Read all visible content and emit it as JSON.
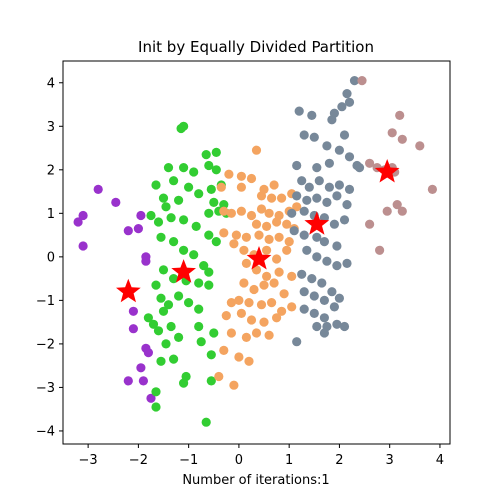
{
  "chart_data": {
    "type": "scatter",
    "title": "Init by Equally Divided Partition",
    "xlabel": "Number of iterations:1",
    "ylabel": "",
    "xlim": [
      -3.5,
      4.2
    ],
    "ylim": [
      -4.3,
      4.5
    ],
    "xticks": [
      -3,
      -2,
      -1,
      0,
      1,
      2,
      3,
      4
    ],
    "yticks": [
      -4,
      -3,
      -2,
      -1,
      0,
      1,
      2,
      3,
      4
    ],
    "grid": false,
    "series": [
      {
        "color": "#9932cc",
        "points": [
          [
            -3.2,
            0.8
          ],
          [
            -3.1,
            0.95
          ],
          [
            -3.1,
            0.25
          ],
          [
            -2.8,
            1.55
          ],
          [
            -2.45,
            1.25
          ],
          [
            -2.2,
            0.6
          ],
          [
            -2.0,
            0.65
          ],
          [
            -1.95,
            0.95
          ],
          [
            -1.85,
            -0.1
          ],
          [
            -1.85,
            0.0
          ],
          [
            -2.1,
            -1.25
          ],
          [
            -2.1,
            -1.65
          ],
          [
            -1.85,
            -2.1
          ],
          [
            -1.8,
            -2.2
          ],
          [
            -1.9,
            -2.85
          ],
          [
            -2.2,
            -2.85
          ],
          [
            -1.95,
            -2.55
          ],
          [
            -1.75,
            -3.25
          ]
        ]
      },
      {
        "color": "#32cd32",
        "points": [
          [
            -1.15,
            2.95
          ],
          [
            -1.1,
            3.0
          ],
          [
            -0.65,
            2.35
          ],
          [
            -0.45,
            2.4
          ],
          [
            -1.4,
            2.05
          ],
          [
            -1.3,
            1.75
          ],
          [
            -1.1,
            2.05
          ],
          [
            -0.9,
            1.95
          ],
          [
            -0.6,
            2.1
          ],
          [
            -0.45,
            2.0
          ],
          [
            -1.65,
            1.65
          ],
          [
            -1.5,
            1.35
          ],
          [
            -1.45,
            1.15
          ],
          [
            -1.2,
            1.3
          ],
          [
            -1.0,
            1.6
          ],
          [
            -0.8,
            1.45
          ],
          [
            -0.55,
            1.55
          ],
          [
            -0.35,
            1.65
          ],
          [
            -0.5,
            1.25
          ],
          [
            -0.3,
            1.2
          ],
          [
            -0.6,
            1.0
          ],
          [
            -0.4,
            1.05
          ],
          [
            -0.25,
            1.0
          ],
          [
            -1.75,
            0.95
          ],
          [
            -1.6,
            0.8
          ],
          [
            -1.35,
            0.9
          ],
          [
            -1.1,
            0.85
          ],
          [
            -0.85,
            0.7
          ],
          [
            -0.6,
            0.5
          ],
          [
            -0.45,
            0.35
          ],
          [
            -1.55,
            0.45
          ],
          [
            -1.3,
            0.35
          ],
          [
            -1.1,
            0.15
          ],
          [
            -0.9,
            0.05
          ],
          [
            -0.7,
            -0.2
          ],
          [
            -0.6,
            -0.35
          ],
          [
            -1.5,
            -0.3
          ],
          [
            -1.3,
            -0.5
          ],
          [
            -1.05,
            -0.55
          ],
          [
            -0.8,
            -0.6
          ],
          [
            -0.6,
            -0.65
          ],
          [
            -1.65,
            -0.65
          ],
          [
            -1.55,
            -0.95
          ],
          [
            -1.4,
            -1.1
          ],
          [
            -1.2,
            -0.9
          ],
          [
            -1.0,
            -1.05
          ],
          [
            -0.8,
            -1.2
          ],
          [
            -1.8,
            -1.4
          ],
          [
            -1.7,
            -1.55
          ],
          [
            -1.5,
            -1.25
          ],
          [
            -1.35,
            -1.6
          ],
          [
            -1.2,
            -1.85
          ],
          [
            -0.8,
            -1.6
          ],
          [
            -0.75,
            -1.95
          ],
          [
            -1.6,
            -1.7
          ],
          [
            -1.45,
            -2.0
          ],
          [
            -1.3,
            -2.35
          ],
          [
            -0.5,
            -1.75
          ],
          [
            -0.55,
            -2.25
          ],
          [
            -1.55,
            -2.4
          ],
          [
            -1.1,
            -2.9
          ],
          [
            -1.05,
            -2.75
          ],
          [
            -0.55,
            -2.85
          ],
          [
            -1.65,
            -3.1
          ],
          [
            -1.65,
            -3.45
          ],
          [
            -0.65,
            -3.8
          ]
        ]
      },
      {
        "color": "#f4a460",
        "points": [
          [
            0.35,
            2.45
          ],
          [
            -0.35,
            1.6
          ],
          [
            -0.2,
            1.9
          ],
          [
            0.05,
            1.85
          ],
          [
            0.25,
            1.8
          ],
          [
            0.05,
            1.6
          ],
          [
            0.5,
            1.55
          ],
          [
            0.7,
            1.65
          ],
          [
            0.45,
            1.4
          ],
          [
            0.65,
            1.35
          ],
          [
            0.85,
            1.35
          ],
          [
            1.05,
            1.45
          ],
          [
            1.15,
            1.15
          ],
          [
            -0.3,
            1.05
          ],
          [
            -0.15,
            1.0
          ],
          [
            0.05,
            1.05
          ],
          [
            0.25,
            0.95
          ],
          [
            0.45,
            1.1
          ],
          [
            0.6,
            1.0
          ],
          [
            0.8,
            0.95
          ],
          [
            1.0,
            1.05
          ],
          [
            0.35,
            0.75
          ],
          [
            0.55,
            0.7
          ],
          [
            0.75,
            0.8
          ],
          [
            0.95,
            0.75
          ],
          [
            1.1,
            0.65
          ],
          [
            -0.3,
            0.55
          ],
          [
            -0.05,
            0.5
          ],
          [
            0.15,
            0.45
          ],
          [
            0.4,
            0.5
          ],
          [
            0.6,
            0.4
          ],
          [
            0.8,
            0.45
          ],
          [
            1.0,
            0.35
          ],
          [
            -0.1,
            0.3
          ],
          [
            0.1,
            0.15
          ],
          [
            0.3,
            0.05
          ],
          [
            0.55,
            0.15
          ],
          [
            0.75,
            -0.05
          ],
          [
            0.95,
            0.15
          ],
          [
            0.15,
            -0.15
          ],
          [
            0.35,
            -0.3
          ],
          [
            0.55,
            -0.45
          ],
          [
            0.8,
            -0.35
          ],
          [
            1.05,
            -0.45
          ],
          [
            0.1,
            -0.6
          ],
          [
            0.3,
            -0.75
          ],
          [
            0.5,
            -0.65
          ],
          [
            0.7,
            -0.6
          ],
          [
            0.9,
            -0.85
          ],
          [
            -0.15,
            -1.05
          ],
          [
            0.0,
            -1.0
          ],
          [
            0.2,
            -1.05
          ],
          [
            0.45,
            -1.1
          ],
          [
            0.65,
            -1.05
          ],
          [
            0.85,
            -1.25
          ],
          [
            1.05,
            -1.15
          ],
          [
            -0.25,
            -1.35
          ],
          [
            0.05,
            -1.3
          ],
          [
            0.25,
            -1.45
          ],
          [
            0.5,
            -1.5
          ],
          [
            0.75,
            -1.4
          ],
          [
            -0.15,
            -1.75
          ],
          [
            0.15,
            -1.85
          ],
          [
            0.35,
            -1.75
          ],
          [
            0.6,
            -1.8
          ],
          [
            -0.3,
            -2.15
          ],
          [
            0.0,
            -2.3
          ],
          [
            0.2,
            -2.4
          ],
          [
            -0.4,
            -2.75
          ],
          [
            -0.1,
            -2.95
          ]
        ]
      },
      {
        "color": "#778899",
        "points": [
          [
            2.3,
            4.05
          ],
          [
            2.15,
            3.75
          ],
          [
            2.2,
            3.55
          ],
          [
            2.05,
            3.45
          ],
          [
            1.9,
            3.3
          ],
          [
            1.45,
            3.25
          ],
          [
            1.2,
            3.35
          ],
          [
            1.85,
            3.15
          ],
          [
            2.1,
            2.8
          ],
          [
            1.3,
            2.8
          ],
          [
            1.5,
            2.75
          ],
          [
            1.75,
            2.55
          ],
          [
            2.0,
            2.45
          ],
          [
            2.2,
            2.3
          ],
          [
            1.8,
            2.15
          ],
          [
            1.55,
            2.05
          ],
          [
            1.15,
            2.1
          ],
          [
            2.35,
            2.1
          ],
          [
            2.4,
            2.05
          ],
          [
            1.25,
            1.75
          ],
          [
            1.4,
            1.6
          ],
          [
            1.6,
            1.75
          ],
          [
            1.8,
            1.6
          ],
          [
            2.0,
            1.65
          ],
          [
            2.2,
            1.55
          ],
          [
            1.15,
            1.4
          ],
          [
            1.35,
            1.3
          ],
          [
            1.55,
            1.35
          ],
          [
            1.75,
            1.25
          ],
          [
            1.95,
            1.4
          ],
          [
            2.15,
            1.2
          ],
          [
            1.05,
            1.0
          ],
          [
            1.3,
            1.05
          ],
          [
            1.5,
            0.95
          ],
          [
            1.7,
            0.9
          ],
          [
            1.9,
            0.75
          ],
          [
            2.1,
            0.85
          ],
          [
            1.1,
            0.6
          ],
          [
            1.3,
            0.5
          ],
          [
            1.55,
            0.45
          ],
          [
            1.7,
            0.35
          ],
          [
            1.95,
            0.25
          ],
          [
            1.35,
            0.15
          ],
          [
            1.55,
            0.0
          ],
          [
            1.75,
            -0.1
          ],
          [
            1.95,
            -0.2
          ],
          [
            2.15,
            -0.15
          ],
          [
            1.25,
            -0.4
          ],
          [
            1.45,
            -0.5
          ],
          [
            1.65,
            -0.6
          ],
          [
            1.85,
            -0.8
          ],
          [
            2.0,
            -0.95
          ],
          [
            1.3,
            -0.8
          ],
          [
            1.5,
            -0.9
          ],
          [
            1.7,
            -1.0
          ],
          [
            1.9,
            -1.15
          ],
          [
            1.3,
            -1.2
          ],
          [
            1.5,
            -1.3
          ],
          [
            1.7,
            -1.4
          ],
          [
            1.55,
            -1.6
          ],
          [
            1.75,
            -1.6
          ],
          [
            1.95,
            -1.55
          ],
          [
            1.7,
            -1.75
          ],
          [
            1.15,
            -1.95
          ],
          [
            2.1,
            -1.6
          ]
        ]
      },
      {
        "color": "#bc8f8f",
        "points": [
          [
            2.45,
            4.05
          ],
          [
            3.2,
            3.25
          ],
          [
            3.05,
            2.85
          ],
          [
            3.25,
            2.7
          ],
          [
            3.6,
            2.55
          ],
          [
            2.6,
            2.15
          ],
          [
            2.75,
            2.05
          ],
          [
            2.9,
            2.0
          ],
          [
            3.05,
            2.05
          ],
          [
            3.1,
            1.95
          ],
          [
            3.85,
            1.55
          ],
          [
            3.15,
            1.2
          ],
          [
            3.25,
            1.05
          ],
          [
            2.95,
            1.05
          ],
          [
            2.6,
            0.75
          ],
          [
            2.8,
            0.15
          ]
        ]
      }
    ],
    "centroids": {
      "color": "#ff0000",
      "points": [
        [
          -2.2,
          -0.8
        ],
        [
          -1.1,
          -0.35
        ],
        [
          0.4,
          -0.05
        ],
        [
          1.55,
          0.75
        ],
        [
          2.95,
          1.95
        ]
      ]
    }
  }
}
